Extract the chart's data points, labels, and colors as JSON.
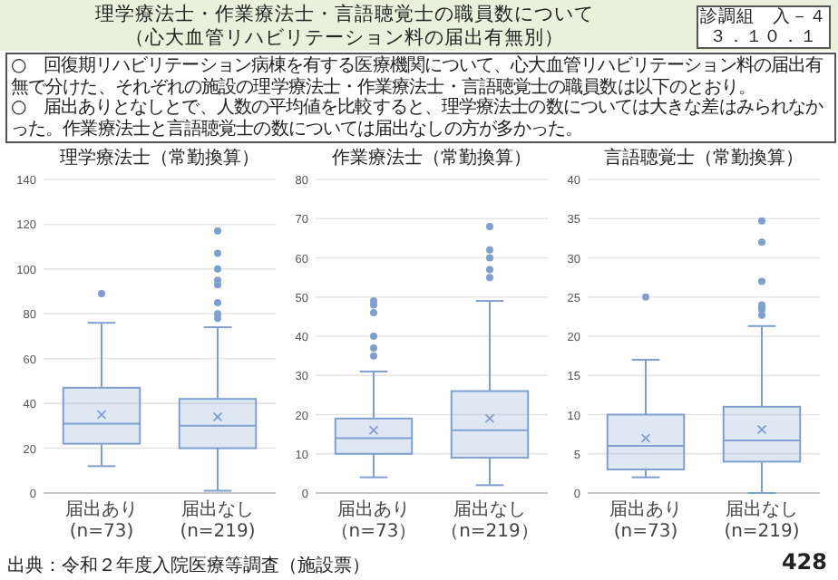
{
  "chart_data": [
    {
      "type": "other",
      "title": "理学療法士・作業療法士・言語聴覚士の職員数について",
      "subtitle": "（心大血管リハビリテーション料の届出有無別）",
      "annotations": [
        "診調組　入－４",
        "３．１０．１",
        "○　回復期リハビリテーション病棟を有する医療機関について、心大血管リハビリテーション料の届出有無で分けた、それぞれの施設の理学療法士・作業療法士・言語聴覚士の職員数は以下のとおり。",
        "○　届出ありとなしとで、人数の平均値を比較すると、理学療法士の数については大きな差はみられなかった。作業療法士と言語聴覚士の数については届出なしの方が多かった。",
        "出典：令和２年度入院医療等調査（施設票）",
        "428"
      ]
    },
    {
      "type": "box",
      "title": "理学療法士（常勤換算）",
      "categories": [
        "届出あり(n=73)",
        "届出なし(n=219)"
      ],
      "ylim": [
        0,
        140
      ],
      "yticks": [
        0,
        20,
        40,
        60,
        80,
        100,
        120,
        140
      ],
      "grid": "y",
      "series": [
        {
          "color": "#7f9fcf",
          "boxes": [
            {
              "low": 12,
              "q1": 22,
              "median": 31,
              "q3": 47,
              "high": 76,
              "mean": 35,
              "outliers": [
                89
              ]
            },
            {
              "low": 1,
              "q1": 20,
              "median": 30,
              "q3": 42,
              "high": 74,
              "mean": 34,
              "outliers": [
                117,
                107,
                100,
                95,
                93,
                85,
                80,
                78
              ]
            }
          ]
        }
      ]
    },
    {
      "type": "box",
      "title": "作業療法士（常勤換算）",
      "categories": [
        "届出あり（n=73）",
        "届出なし（n=219）"
      ],
      "ylim": [
        0,
        80
      ],
      "yticks": [
        0,
        10,
        20,
        30,
        40,
        50,
        60,
        70,
        80
      ],
      "grid": "y",
      "series": [
        {
          "color": "#7f9fcf",
          "boxes": [
            {
              "low": 4,
              "q1": 10,
              "median": 14,
              "q3": 19,
              "high": 31,
              "mean": 16,
              "outliers": [
                49,
                48,
                46,
                40,
                37,
                35
              ]
            },
            {
              "low": 2,
              "q1": 9,
              "median": 16,
              "q3": 26,
              "high": 49,
              "mean": 19,
              "outliers": [
                68,
                62,
                60,
                57,
                55
              ]
            }
          ]
        }
      ]
    },
    {
      "type": "box",
      "title": "言語聴覚士（常勤換算）",
      "categories": [
        "届出あり(n=73)",
        "届出なし(n=219)"
      ],
      "ylim": [
        0,
        40
      ],
      "yticks": [
        0,
        5,
        10,
        15,
        20,
        25,
        30,
        35,
        40
      ],
      "grid": "y",
      "series": [
        {
          "color": "#7f9fcf",
          "boxes": [
            {
              "low": 2,
              "q1": 3,
              "median": 6,
              "q3": 10,
              "high": 17,
              "mean": 7,
              "outliers": [
                25
              ]
            },
            {
              "low": 0,
              "q1": 4,
              "median": 6.7,
              "q3": 11,
              "high": 21.3,
              "mean": 8.1,
              "outliers": [
                34.7,
                32,
                27,
                24,
                23.7,
                23.4,
                22.7
              ]
            }
          ]
        }
      ]
    }
  ]
}
